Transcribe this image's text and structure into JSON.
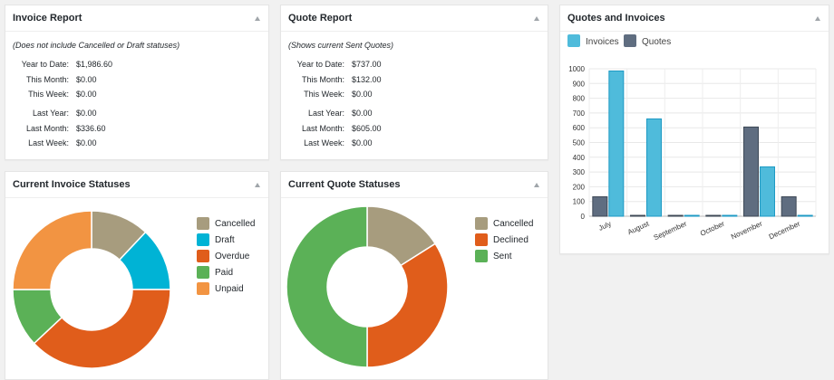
{
  "invoice_report": {
    "title": "Invoice Report",
    "note": "(Does not include Cancelled or Draft statuses)",
    "rows": [
      {
        "label": "Year to Date:",
        "value": "$1,986.60"
      },
      {
        "label": "This Month:",
        "value": "$0.00"
      },
      {
        "label": "This Week:",
        "value": "$0.00"
      },
      {
        "label": "Last Year:",
        "value": "$0.00"
      },
      {
        "label": "Last Month:",
        "value": "$336.60"
      },
      {
        "label": "Last Week:",
        "value": "$0.00"
      }
    ]
  },
  "quote_report": {
    "title": "Quote Report",
    "note": "(Shows current Sent Quotes)",
    "rows": [
      {
        "label": "Year to Date:",
        "value": "$737.00"
      },
      {
        "label": "This Month:",
        "value": "$132.00"
      },
      {
        "label": "This Week:",
        "value": "$0.00"
      },
      {
        "label": "Last Year:",
        "value": "$0.00"
      },
      {
        "label": "Last Month:",
        "value": "$605.00"
      },
      {
        "label": "Last Week:",
        "value": "$0.00"
      }
    ]
  },
  "invoice_statuses": {
    "title": "Current Invoice Statuses",
    "legend": [
      {
        "label": "Cancelled",
        "color": "#a79c7e"
      },
      {
        "label": "Draft",
        "color": "#00b3d5"
      },
      {
        "label": "Overdue",
        "color": "#e05d1b"
      },
      {
        "label": "Paid",
        "color": "#5bb157"
      },
      {
        "label": "Unpaid",
        "color": "#f29442"
      }
    ]
  },
  "quote_statuses": {
    "title": "Current Quote Statuses",
    "legend": [
      {
        "label": "Cancelled",
        "color": "#a79c7e"
      },
      {
        "label": "Declined",
        "color": "#e05d1b"
      },
      {
        "label": "Sent",
        "color": "#5bb157"
      }
    ]
  },
  "quotes_invoices": {
    "title": "Quotes and Invoices"
  },
  "chart_data": [
    {
      "type": "pie",
      "donut": true,
      "labels": [
        "Cancelled",
        "Draft",
        "Overdue",
        "Paid",
        "Unpaid"
      ],
      "values": [
        0.12,
        0.13,
        0.38,
        0.12,
        0.25
      ],
      "colors": [
        "#a79c7e",
        "#00b3d5",
        "#e05d1b",
        "#5bb157",
        "#f29442"
      ],
      "legend": "right"
    },
    {
      "type": "pie",
      "donut": true,
      "labels": [
        "Cancelled",
        "Declined",
        "Sent"
      ],
      "values": [
        0.16,
        0.34,
        0.5
      ],
      "colors": [
        "#a79c7e",
        "#e05d1b",
        "#5bb157"
      ],
      "legend": "right"
    },
    {
      "type": "bar",
      "categories": [
        "July",
        "August",
        "September",
        "October",
        "November",
        "December"
      ],
      "series": [
        {
          "name": "Invoices",
          "values": [
            985,
            660,
            0,
            0,
            335,
            0
          ],
          "color": "#4fbbdb"
        },
        {
          "name": "Quotes",
          "values": [
            132,
            0,
            0,
            0,
            605,
            132
          ],
          "color": "#5f6d80"
        }
      ],
      "ylim": [
        0,
        1000
      ],
      "yticks": [
        0,
        100,
        200,
        300,
        400,
        500,
        600,
        700,
        800,
        900,
        1000
      ],
      "legend": "top-left",
      "grid": true
    }
  ]
}
